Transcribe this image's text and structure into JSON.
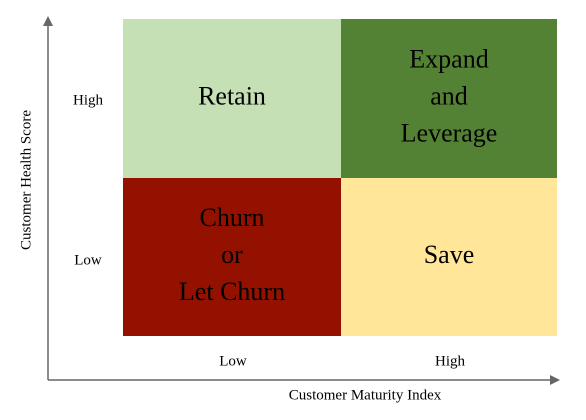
{
  "y_axis": {
    "title": "Customer Health Score",
    "labels": [
      "High",
      "Low"
    ]
  },
  "x_axis": {
    "title": "Customer Maturity Index",
    "labels": [
      "Low",
      "High"
    ]
  },
  "quadrants": [
    {
      "lines": [
        "Retain"
      ],
      "color": "#c5e0b4",
      "text_color": "#000000"
    },
    {
      "lines": [
        "Expand",
        "and",
        "Leverage"
      ],
      "color": "#548235",
      "text_color": "#000000"
    },
    {
      "lines": [
        "Churn",
        "or",
        "Let Churn"
      ],
      "color": "#941100",
      "text_color": "#000000"
    },
    {
      "lines": [
        "Save"
      ],
      "color": "#ffe699",
      "text_color": "#000000"
    }
  ]
}
